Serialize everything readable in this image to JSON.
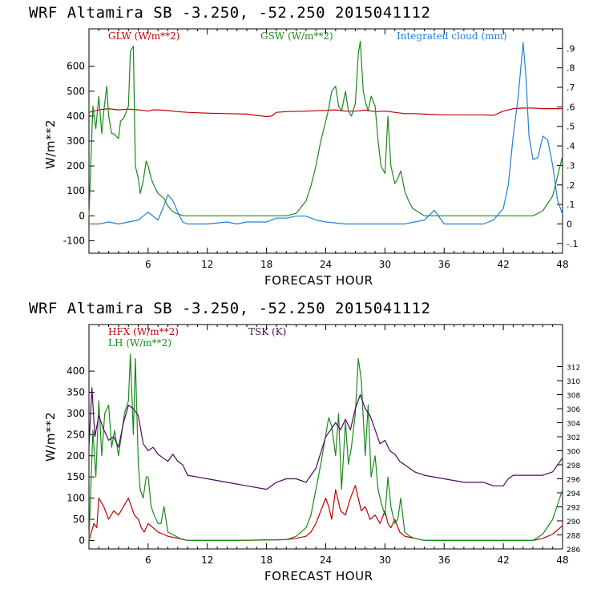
{
  "chart_data": [
    {
      "type": "line",
      "title": "WRF   Altamira  SB  -3.250, -52.250  2015041112",
      "xlabel": "FORECAST HOUR",
      "ylabel": "W/m**2",
      "xlim": [
        0,
        48
      ],
      "ylim": [
        -150,
        750
      ],
      "y2lim": [
        -0.15,
        1.0
      ],
      "xticks": [
        "6",
        "12",
        "18",
        "24",
        "30",
        "36",
        "42",
        "48"
      ],
      "yticks": [
        "-100",
        "0",
        "100",
        "200",
        "300",
        "400",
        "500",
        "600"
      ],
      "y2ticks": [
        "-.1",
        "0",
        ".1",
        ".2",
        ".3",
        ".4",
        ".5",
        ".6",
        ".7",
        ".8",
        ".9"
      ],
      "colors": {
        "glw": "#c00000",
        "gsw": "#1a8a1a",
        "cloud": "#1f7fd8"
      },
      "series": [
        {
          "name": "GLW (W/m**2)",
          "axis": "left",
          "color": "#c00000",
          "x": [
            0,
            0.5,
            1,
            2,
            3,
            4,
            5,
            5.5,
            6,
            6.5,
            7,
            8,
            9,
            10,
            12,
            14,
            16,
            18,
            18.5,
            19,
            20,
            22,
            24,
            25,
            26,
            27,
            28,
            29,
            30,
            31,
            32,
            33,
            34,
            36,
            38,
            40,
            41,
            42,
            43,
            44,
            45,
            46,
            47,
            48
          ],
          "y": [
            415,
            420,
            425,
            430,
            425,
            428,
            425,
            423,
            420,
            425,
            425,
            422,
            418,
            415,
            412,
            410,
            408,
            398,
            400,
            415,
            418,
            420,
            423,
            425,
            420,
            420,
            424,
            418,
            420,
            415,
            410,
            410,
            408,
            405,
            405,
            405,
            403,
            420,
            430,
            432,
            432,
            430,
            430,
            430
          ]
        },
        {
          "name": "GSW (W/m**2)",
          "axis": "left",
          "color": "#1a8a1a",
          "x": [
            0,
            0.4,
            0.7,
            1,
            1.3,
            1.5,
            1.8,
            2,
            2.3,
            2.5,
            3,
            3.2,
            3.5,
            3.8,
            4,
            4.2,
            4.5,
            4.7,
            5,
            5.2,
            5.5,
            5.8,
            6,
            6.3,
            6.6,
            7,
            7.3,
            7.6,
            8,
            8.4,
            8.8,
            9.2,
            9.6,
            10,
            15,
            20,
            21,
            22,
            22.5,
            23,
            23.5,
            24,
            24.3,
            24.6,
            25,
            25.3,
            25.6,
            26,
            26.3,
            26.6,
            27,
            27.3,
            27.5,
            27.8,
            28,
            28.3,
            28.6,
            29,
            29.3,
            29.6,
            30,
            30.3,
            30.6,
            31,
            31.3,
            31.6,
            32,
            32.4,
            32.8,
            33.2,
            33.6,
            34,
            40,
            45,
            46,
            47,
            48
          ],
          "y": [
            0,
            440,
            350,
            480,
            330,
            420,
            520,
            400,
            330,
            330,
            310,
            380,
            390,
            420,
            440,
            660,
            680,
            200,
            150,
            90,
            140,
            220,
            200,
            150,
            120,
            90,
            80,
            70,
            40,
            20,
            10,
            5,
            0,
            0,
            0,
            0,
            10,
            60,
            120,
            200,
            300,
            380,
            430,
            500,
            520,
            440,
            420,
            500,
            420,
            400,
            450,
            650,
            700,
            500,
            460,
            420,
            480,
            440,
            300,
            200,
            170,
            400,
            200,
            130,
            150,
            180,
            100,
            60,
            30,
            20,
            10,
            0,
            0,
            0,
            20,
            80,
            240
          ]
        },
        {
          "name": "Integrated cloud (mm)",
          "axis": "right",
          "color": "#1f7fd8",
          "x": [
            0,
            1,
            2,
            3,
            4,
            5,
            5.5,
            6,
            6.5,
            7,
            7.5,
            8,
            8.5,
            9,
            9.5,
            10,
            12,
            14,
            15,
            16,
            18,
            19,
            20,
            21,
            22,
            23,
            24,
            26,
            28,
            30,
            32,
            33,
            34,
            35,
            36,
            38,
            40,
            41,
            42,
            42.5,
            43,
            43.5,
            44,
            44.3,
            44.6,
            45,
            45.5,
            46,
            46.5,
            47,
            47.5,
            48
          ],
          "y": [
            0,
            0,
            0.01,
            0.0,
            0.01,
            0.02,
            0.04,
            0.06,
            0.04,
            0.02,
            0.08,
            0.15,
            0.12,
            0.06,
            0.01,
            0.0,
            0.0,
            0.01,
            0.0,
            0.01,
            0.01,
            0.03,
            0.03,
            0.04,
            0.04,
            0.02,
            0.01,
            0.0,
            0.0,
            0.0,
            0.0,
            0.01,
            0.02,
            0.07,
            0.0,
            0.0,
            0.0,
            0.02,
            0.08,
            0.2,
            0.45,
            0.65,
            0.93,
            0.75,
            0.45,
            0.33,
            0.34,
            0.45,
            0.43,
            0.3,
            0.12,
            0.05
          ]
        }
      ]
    },
    {
      "type": "line",
      "title": "WRF   Altamira  SB  -3.250, -52.250  2015041112",
      "xlabel": "FORECAST HOUR",
      "ylabel": "W/m**2",
      "xlim": [
        0,
        48
      ],
      "ylim": [
        -20,
        510
      ],
      "y2lim": [
        286,
        318
      ],
      "xticks": [
        "6",
        "12",
        "18",
        "24",
        "30",
        "36",
        "42",
        "48"
      ],
      "yticks": [
        "0",
        "50",
        "100",
        "150",
        "200",
        "250",
        "300",
        "350",
        "400"
      ],
      "y2ticks": [
        "286",
        "288",
        "290",
        "292",
        "294",
        "296",
        "298",
        "300",
        "302",
        "304",
        "306",
        "308",
        "310",
        "312"
      ],
      "colors": {
        "hfx": "#c00000",
        "lh": "#1a8a1a",
        "tsk": "#4b0a5a"
      },
      "series": [
        {
          "name": "HFX (W/m**2)",
          "axis": "left",
          "color": "#c00000",
          "x": [
            0,
            0.5,
            0.8,
            1,
            1.5,
            2,
            2.5,
            3,
            3.5,
            4,
            4.3,
            4.6,
            5,
            5.3,
            5.6,
            6,
            6.5,
            7,
            7.5,
            8,
            9,
            10,
            15,
            20,
            21,
            22,
            22.5,
            23,
            23.5,
            24,
            24.3,
            24.6,
            25,
            25.5,
            26,
            26.5,
            27,
            27.3,
            27.6,
            28,
            28.5,
            29,
            29.5,
            30,
            30.3,
            30.6,
            31,
            31.5,
            32,
            33,
            34,
            40,
            45,
            46,
            47,
            48
          ],
          "y": [
            0,
            40,
            30,
            100,
            80,
            50,
            70,
            60,
            80,
            100,
            80,
            60,
            50,
            30,
            20,
            40,
            30,
            20,
            15,
            10,
            5,
            0,
            0,
            2,
            5,
            10,
            20,
            40,
            70,
            100,
            80,
            50,
            120,
            70,
            60,
            100,
            130,
            100,
            70,
            80,
            50,
            60,
            40,
            70,
            40,
            30,
            50,
            20,
            10,
            5,
            0,
            0,
            0,
            5,
            15,
            35
          ]
        },
        {
          "name": "LH (W/m**2)",
          "axis": "left",
          "color": "#1a8a1a",
          "x": [
            0,
            0.4,
            0.7,
            1,
            1.3,
            1.6,
            2,
            2.3,
            2.6,
            3,
            3.3,
            3.6,
            4,
            4.2,
            4.5,
            4.7,
            5,
            5.2,
            5.5,
            5.8,
            6,
            6.3,
            6.6,
            7,
            7.3,
            7.6,
            8,
            8.4,
            8.8,
            9.2,
            10,
            15,
            20,
            21,
            22,
            22.5,
            23,
            23.5,
            24,
            24.3,
            24.6,
            25,
            25.3,
            25.6,
            26,
            26.3,
            26.6,
            27,
            27.3,
            27.6,
            28,
            28.3,
            28.6,
            29,
            29.3,
            29.6,
            30,
            30.3,
            30.6,
            31,
            31.3,
            31.6,
            32,
            32.5,
            33,
            34,
            40,
            45,
            46,
            47,
            48
          ],
          "y": [
            0,
            260,
            150,
            330,
            200,
            300,
            320,
            220,
            260,
            200,
            250,
            300,
            330,
            440,
            250,
            430,
            180,
            120,
            100,
            150,
            150,
            80,
            60,
            40,
            40,
            80,
            20,
            15,
            10,
            5,
            0,
            0,
            2,
            10,
            30,
            60,
            120,
            180,
            250,
            290,
            270,
            200,
            300,
            120,
            280,
            180,
            220,
            300,
            430,
            380,
            200,
            320,
            150,
            200,
            120,
            90,
            60,
            150,
            80,
            40,
            50,
            100,
            20,
            10,
            5,
            0,
            0,
            0,
            15,
            50,
            120
          ]
        },
        {
          "name": "TSK (K)",
          "axis": "right",
          "color": "#4b0a5a",
          "x": [
            0,
            0.3,
            0.6,
            1,
            1.5,
            2,
            2.5,
            3,
            3.5,
            4,
            4.5,
            5,
            5.5,
            6,
            6.5,
            7,
            7.5,
            8,
            8.5,
            9,
            9.5,
            10,
            12,
            14,
            16,
            18,
            19,
            20,
            21,
            22,
            23,
            24,
            24.5,
            25,
            25.5,
            26,
            26.5,
            27,
            27.5,
            28,
            28.5,
            29,
            29.5,
            30,
            30.5,
            31,
            31.5,
            32,
            33,
            34,
            36,
            38,
            40,
            41,
            42,
            42.5,
            43,
            44,
            45,
            46,
            47,
            48
          ],
          "y": [
            300.5,
            309,
            302,
            305,
            303,
            301.5,
            302,
            300.5,
            304,
            306.5,
            306,
            305,
            301,
            300,
            300.5,
            299.5,
            299,
            298.5,
            299.5,
            298.5,
            298,
            296.5,
            296,
            295.5,
            295,
            294.5,
            295.5,
            296,
            296,
            295.5,
            297.5,
            302,
            303,
            304,
            303,
            304.5,
            303,
            306,
            308,
            306,
            305,
            303,
            301,
            301.5,
            300,
            299.5,
            298.5,
            298,
            297,
            296.5,
            296,
            295.5,
            295.5,
            295,
            295,
            296,
            296.5,
            296.5,
            296.5,
            296.5,
            297,
            299
          ]
        }
      ]
    }
  ]
}
